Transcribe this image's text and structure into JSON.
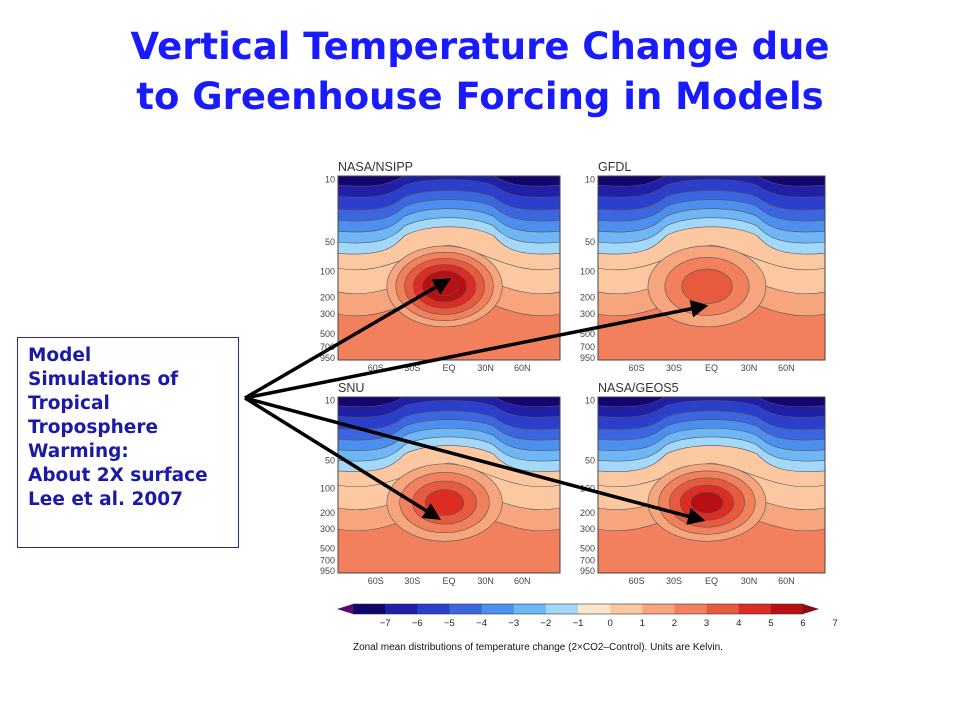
{
  "title": {
    "line1": "Vertical Temperature Change due",
    "line2": "to Greenhouse Forcing in Models"
  },
  "callout": {
    "lines": [
      "Model",
      "Simulations of",
      "Tropical",
      "Troposphere",
      "Warming:",
      "About 2X surface",
      "Lee et al. 2007"
    ]
  },
  "chart_data": {
    "type": "heatmap",
    "caption": "Zonal mean distributions of temperature change (2×CO2–Control). Units are Kelvin.",
    "y_ticks": [
      "10",
      "50",
      "100",
      "200",
      "300",
      "500",
      "700",
      "950"
    ],
    "x_ticks": [
      "60S",
      "30S",
      "EQ",
      "30N",
      "60N"
    ],
    "colorbar": {
      "ticks": [
        "−7",
        "−6",
        "−5",
        "−4",
        "−3",
        "−2",
        "−1",
        "0",
        "1",
        "2",
        "3",
        "4",
        "5",
        "6",
        "7"
      ],
      "colors": [
        "#12056e",
        "#1f1fa8",
        "#2c3fcc",
        "#3b66e0",
        "#4c8fee",
        "#6fb6f6",
        "#a4d8fb",
        "#fde6cc",
        "#fbc8a2",
        "#f7a57c",
        "#f2805c",
        "#e85a3e",
        "#db2d24",
        "#b80f14"
      ]
    },
    "panels": [
      {
        "name": "NASA/NSIPP",
        "max_warming_level": 7
      },
      {
        "name": "GFDL",
        "max_warming_level": 4
      },
      {
        "name": "SNU",
        "max_warming_level": 5
      },
      {
        "name": "NASA/GEOS5",
        "max_warming_level": 6
      }
    ]
  }
}
